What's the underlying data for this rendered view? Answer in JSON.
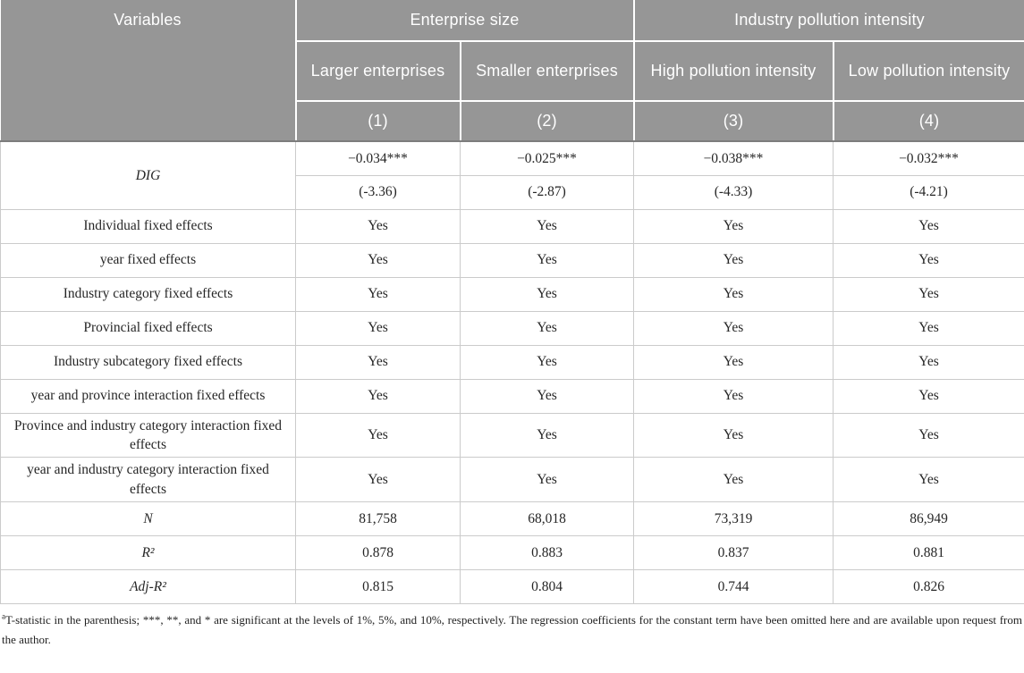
{
  "header": {
    "variables_label": "Variables",
    "groups": [
      {
        "label": "Enterprise size"
      },
      {
        "label": "Industry pollution intensity"
      }
    ],
    "subcols": [
      {
        "label": "Larger enterprises",
        "num": "(1)"
      },
      {
        "label": "Smaller enterprises",
        "num": "(2)"
      },
      {
        "label": "High pollution intensity",
        "num": "(3)"
      },
      {
        "label": "Low pollution intensity",
        "num": "(4)"
      }
    ]
  },
  "body": {
    "dig": {
      "label": "DIG",
      "coefficients": [
        "−0.034***",
        "−0.025***",
        "−0.038***",
        "−0.032***"
      ],
      "t_stats": [
        "(-3.36)",
        "(-2.87)",
        "(-4.33)",
        "(-4.21)"
      ]
    },
    "rows": [
      {
        "label": "Individual fixed effects",
        "italic": false,
        "values": [
          "Yes",
          "Yes",
          "Yes",
          "Yes"
        ]
      },
      {
        "label": "year fixed effects",
        "italic": false,
        "values": [
          "Yes",
          "Yes",
          "Yes",
          "Yes"
        ]
      },
      {
        "label": "Industry category fixed effects",
        "italic": false,
        "values": [
          "Yes",
          "Yes",
          "Yes",
          "Yes"
        ]
      },
      {
        "label": "Provincial fixed effects",
        "italic": false,
        "values": [
          "Yes",
          "Yes",
          "Yes",
          "Yes"
        ]
      },
      {
        "label": "Industry subcategory fixed effects",
        "italic": false,
        "values": [
          "Yes",
          "Yes",
          "Yes",
          "Yes"
        ]
      },
      {
        "label": "year and province interaction fixed effects",
        "italic": false,
        "values": [
          "Yes",
          "Yes",
          "Yes",
          "Yes"
        ]
      },
      {
        "label": "Province and industry category interaction fixed effects",
        "italic": false,
        "values": [
          "Yes",
          "Yes",
          "Yes",
          "Yes"
        ]
      },
      {
        "label": "year and industry category interaction fixed effects",
        "italic": false,
        "values": [
          "Yes",
          "Yes",
          "Yes",
          "Yes"
        ]
      },
      {
        "label": "N",
        "italic": true,
        "values": [
          "81,758",
          "68,018",
          "73,319",
          "86,949"
        ]
      },
      {
        "label": "R²",
        "italic": true,
        "values": [
          "0.878",
          "0.883",
          "0.837",
          "0.881"
        ]
      },
      {
        "label": "Adj-R²",
        "italic": true,
        "values": [
          "0.815",
          "0.804",
          "0.744",
          "0.826"
        ]
      }
    ]
  },
  "footnote": {
    "marker": "a",
    "text": "T-statistic in the parenthesis; ***, **, and * are significant at the levels of 1%, 5%, and 10%, respectively. The regression coefficients for the constant term have been omitted here and are available upon request from the author."
  },
  "colors": {
    "header_bg": "#969696",
    "header_text": "#ffffff",
    "grid_line": "#cbcbcb",
    "header_divider": "#7d7d7d",
    "body_text": "#262626"
  }
}
